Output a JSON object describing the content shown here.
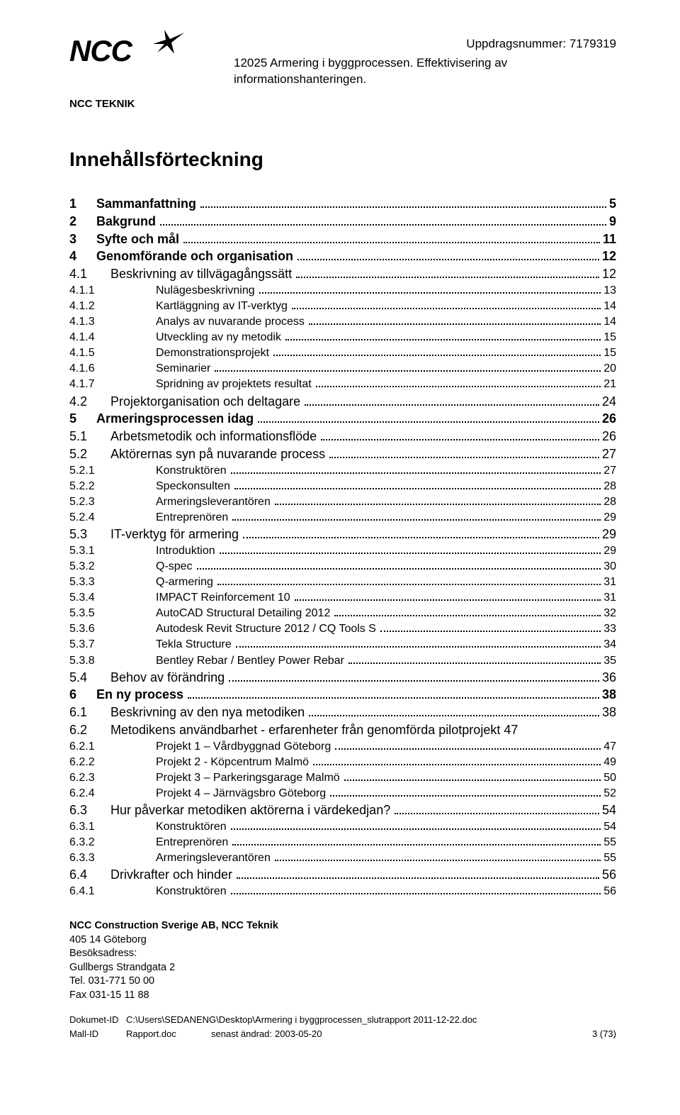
{
  "header": {
    "logo_text": "NCC",
    "uppdragsnummer_label": "Uppdragsnummer:",
    "uppdragsnummer": "7179319",
    "doc_title": "12025 Armering i byggprocessen. Effektivisering av informationshanteringen.",
    "subunit": "NCC TEKNIK"
  },
  "toc_heading": "Innehållsförteckning",
  "toc": [
    {
      "level": 1,
      "num": "1",
      "title": "Sammanfattning",
      "page": "5"
    },
    {
      "level": 1,
      "num": "2",
      "title": "Bakgrund",
      "page": "9"
    },
    {
      "level": 1,
      "num": "3",
      "title": "Syfte och mål",
      "page": "11"
    },
    {
      "level": 1,
      "num": "4",
      "title": "Genomförande och organisation",
      "page": "12"
    },
    {
      "level": 2,
      "num": "4.1",
      "title": "Beskrivning av tillvägagångssätt",
      "page": "12"
    },
    {
      "level": 3,
      "num": "4.1.1",
      "title": "Nulägesbeskrivning",
      "page": "13"
    },
    {
      "level": 3,
      "num": "4.1.2",
      "title": "Kartläggning av IT-verktyg",
      "page": "14"
    },
    {
      "level": 3,
      "num": "4.1.3",
      "title": "Analys av nuvarande process",
      "page": "14"
    },
    {
      "level": 3,
      "num": "4.1.4",
      "title": "Utveckling av ny metodik",
      "page": "15"
    },
    {
      "level": 3,
      "num": "4.1.5",
      "title": "Demonstrationsprojekt",
      "page": "15"
    },
    {
      "level": 3,
      "num": "4.1.6",
      "title": "Seminarier",
      "page": "20"
    },
    {
      "level": 3,
      "num": "4.1.7",
      "title": "Spridning av projektets resultat",
      "page": "21"
    },
    {
      "level": 2,
      "num": "4.2",
      "title": "Projektorganisation och deltagare",
      "page": "24"
    },
    {
      "level": 1,
      "num": "5",
      "title": "Armeringsprocessen idag",
      "page": "26"
    },
    {
      "level": 2,
      "num": "5.1",
      "title": "Arbetsmetodik och informationsflöde",
      "page": "26"
    },
    {
      "level": 2,
      "num": "5.2",
      "title": "Aktörernas syn på nuvarande process",
      "page": "27"
    },
    {
      "level": 3,
      "num": "5.2.1",
      "title": "Konstruktören",
      "page": "27"
    },
    {
      "level": 3,
      "num": "5.2.2",
      "title": "Speckonsulten",
      "page": "28"
    },
    {
      "level": 3,
      "num": "5.2.3",
      "title": "Armeringsleverantören",
      "page": "28"
    },
    {
      "level": 3,
      "num": "5.2.4",
      "title": "Entreprenören",
      "page": "29"
    },
    {
      "level": 2,
      "num": "5.3",
      "title": "IT-verktyg för armering",
      "page": "29"
    },
    {
      "level": 3,
      "num": "5.3.1",
      "title": "Introduktion",
      "page": "29"
    },
    {
      "level": 3,
      "num": "5.3.2",
      "title": "Q-spec",
      "page": "30"
    },
    {
      "level": 3,
      "num": "5.3.3",
      "title": "Q-armering",
      "page": "31"
    },
    {
      "level": 3,
      "num": "5.3.4",
      "title": "IMPACT Reinforcement 10",
      "page": "31"
    },
    {
      "level": 3,
      "num": "5.3.5",
      "title": "AutoCAD Structural Detailing 2012",
      "page": "32"
    },
    {
      "level": 3,
      "num": "5.3.6",
      "title": "Autodesk Revit Structure 2012 / CQ Tools S",
      "page": "33"
    },
    {
      "level": 3,
      "num": "5.3.7",
      "title": "Tekla Structure",
      "page": "34"
    },
    {
      "level": 3,
      "num": "5.3.8",
      "title": "Bentley Rebar / Bentley Power Rebar",
      "page": "35"
    },
    {
      "level": 2,
      "num": "5.4",
      "title": "Behov av förändring",
      "page": "36"
    },
    {
      "level": 1,
      "num": "6",
      "title": "En ny process",
      "page": "38"
    },
    {
      "level": 2,
      "num": "6.1",
      "title": "Beskrivning av den nya metodiken",
      "page": "38"
    },
    {
      "level": 2,
      "num": "6.2",
      "title": "Metodikens användbarhet - erfarenheter från genomförda pilotprojekt",
      "page": "47",
      "noleader": true
    },
    {
      "level": 3,
      "num": "6.2.1",
      "title": "Projekt 1 – Vårdbyggnad Göteborg",
      "page": "47"
    },
    {
      "level": 3,
      "num": "6.2.2",
      "title": "Projekt 2 - Köpcentrum Malmö",
      "page": "49"
    },
    {
      "level": 3,
      "num": "6.2.3",
      "title": "Projekt 3 – Parkeringsgarage Malmö",
      "page": "50"
    },
    {
      "level": 3,
      "num": "6.2.4",
      "title": "Projekt 4 – Järnvägsbro Göteborg",
      "page": "52"
    },
    {
      "level": 2,
      "num": "6.3",
      "title": "Hur påverkar metodiken aktörerna i värdekedjan?",
      "page": "54"
    },
    {
      "level": 3,
      "num": "6.3.1",
      "title": "Konstruktören",
      "page": "54"
    },
    {
      "level": 3,
      "num": "6.3.2",
      "title": "Entreprenören",
      "page": "55"
    },
    {
      "level": 3,
      "num": "6.3.3",
      "title": "Armeringsleverantören",
      "page": "55"
    },
    {
      "level": 2,
      "num": "6.4",
      "title": "Drivkrafter och hinder",
      "page": "56"
    },
    {
      "level": 3,
      "num": "6.4.1",
      "title": "Konstruktören",
      "page": "56"
    }
  ],
  "footer": {
    "company": "NCC Construction Sverige AB, NCC Teknik",
    "postal": "405 14 Göteborg",
    "visit_label": "Besöksadress:",
    "street": "Gullbergs Strandgata 2",
    "tel": "Tel. 031-771 50 00",
    "fax": "Fax 031-15 11 88",
    "dokument_id_label": "Dokumet-ID",
    "dokument_id": "C:\\Users\\SEDANENG\\Desktop\\Armering i byggprocessen_slutrapport 2011-12-22.doc",
    "mall_id_label": "Mall-ID",
    "mall_id": "Rapport.doc",
    "senast_label": "senast ändrad:",
    "senast": "2003-05-20",
    "page_indicator": "3 (73)"
  }
}
